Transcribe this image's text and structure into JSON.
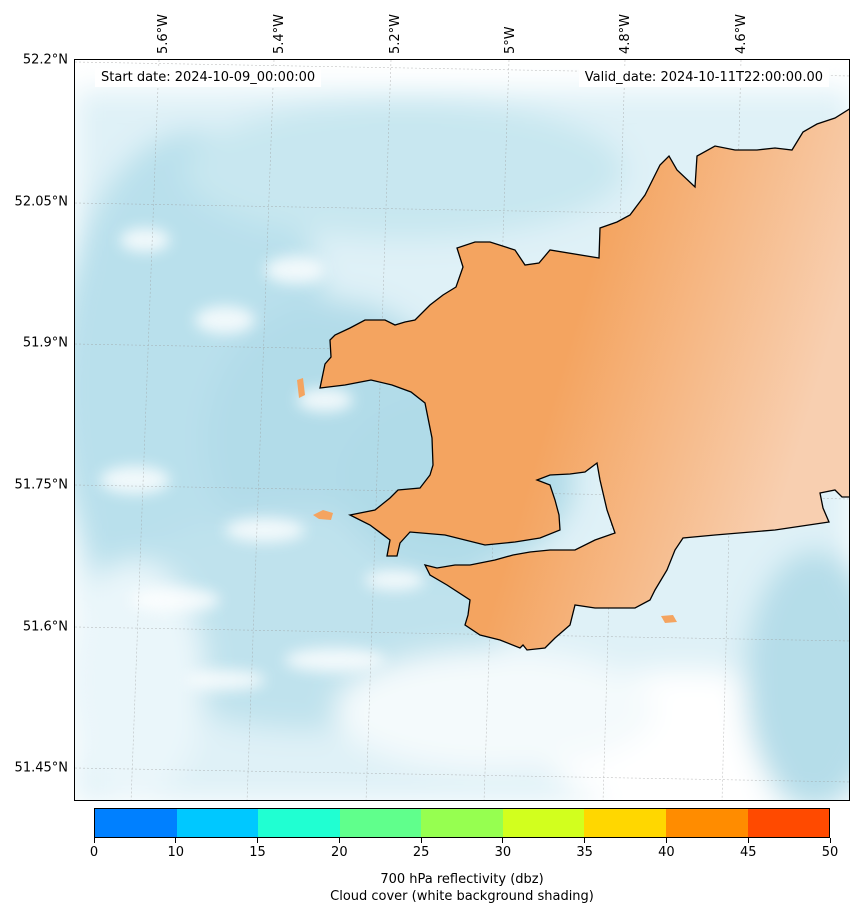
{
  "annotations": {
    "start_date": "Start date: 2024-10-09_00:00:00",
    "valid_date": "Valid_date: 2024-10-11T22:00:00.00"
  },
  "axes": {
    "latitude_labels": [
      "52.2°N",
      "52.05°N",
      "51.9°N",
      "51.75°N",
      "51.6°N",
      "51.45°N"
    ],
    "longitude_labels": [
      "5.6°W",
      "5.4°W",
      "5.2°W",
      "5°W",
      "4.8°W",
      "4.6°W"
    ]
  },
  "colorbar": {
    "tick_labels": [
      "0",
      "10",
      "15",
      "20",
      "25",
      "30",
      "35",
      "40",
      "45",
      "50"
    ],
    "colors": [
      "#0080ff",
      "#00c8ff",
      "#20ffd2",
      "#60ff8c",
      "#96ff50",
      "#d2ff1e",
      "#ffd700",
      "#ff8c00",
      "#ff4a00"
    ],
    "label_line1": "700 hPa reflectivity (dbz)",
    "label_line2": "Cloud cover (white background shading)"
  },
  "map_colors": {
    "cloud": "#add8e6",
    "land": "#f4a460",
    "land_light": "#f8cfb0",
    "coastline": "#000000"
  }
}
